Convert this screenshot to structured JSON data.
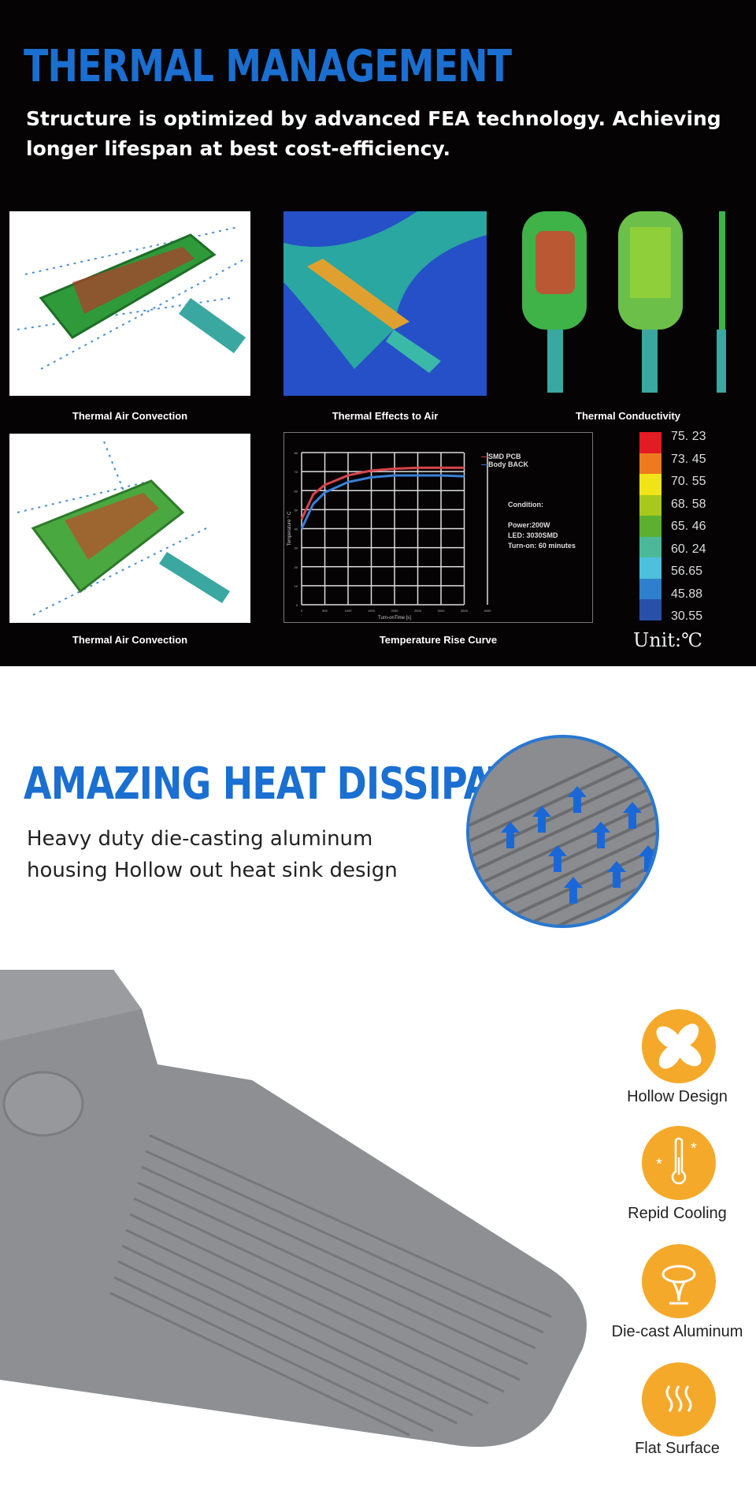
{
  "thermal": {
    "title": "THERMAL MANAGEMENT",
    "subtitle_line1": "Structure is optimized by advanced FEA technology. Achieving",
    "subtitle_line2": "longer lifespan at best cost-efficiency.",
    "captions": [
      "Thermal Air Convection",
      "Thermal Effects to Air",
      "Thermal Conductivity",
      "Thermal Air Convection",
      "Temperature Rise Curve"
    ],
    "legend": {
      "values": [
        "75. 23",
        "73. 45",
        "70. 55",
        "68. 58",
        "65. 46",
        "60. 24",
        "56.65",
        "45.88",
        "30.55"
      ],
      "colors": [
        "#e31b23",
        "#ee7a1e",
        "#f0e418",
        "#a9c81c",
        "#5db02f",
        "#4bb89a",
        "#4cc0dc",
        "#2f7fcf",
        "#2850a8"
      ],
      "unit": "Unit:℃"
    }
  },
  "chart_data": {
    "type": "line",
    "title": "",
    "xlabel": "Turn-onTime [s]",
    "ylabel": "Temperature ° C",
    "xlim": [
      0,
      4000
    ],
    "ylim": [
      0,
      80
    ],
    "x_ticks": [
      "0",
      "500",
      "1000",
      "1500",
      "2000",
      "2500",
      "3000",
      "3500",
      "4000"
    ],
    "y_ticks": [
      "0",
      "10",
      "20",
      "30",
      "40",
      "50",
      "60",
      "70",
      "80"
    ],
    "grid": true,
    "legend_position": "right",
    "x": [
      0,
      250,
      500,
      1000,
      1500,
      2000,
      2500,
      3000,
      3500
    ],
    "series": [
      {
        "name": "SMD PCB",
        "color": "#d9444c",
        "values": [
          45,
          58,
          63,
          68,
          70.5,
          71.5,
          72,
          72,
          72
        ]
      },
      {
        "name": "Body BACK",
        "color": "#3a7fd8",
        "values": [
          40,
          53,
          59,
          64.5,
          67,
          68,
          68,
          68,
          67.5
        ]
      }
    ],
    "notes": [
      "Condition:",
      "Power:200W",
      "LED: 3030SMD",
      "Turn-on: 60 minutes"
    ]
  },
  "dissipation": {
    "title": "AMAZING HEAT DISSIPATION",
    "line1": "Heavy duty die-casting aluminum",
    "line2": "housing Hollow out heat sink design",
    "features": [
      {
        "label": "Hollow Design",
        "icon": "fan-icon"
      },
      {
        "label": "Repid Cooling",
        "icon": "thermometer-snowflake-icon"
      },
      {
        "label": "Die-cast Aluminum",
        "icon": "die-cast-icon"
      },
      {
        "label": "Flat Surface",
        "icon": "heat-waves-icon"
      }
    ],
    "accent": "#f5a92a"
  }
}
